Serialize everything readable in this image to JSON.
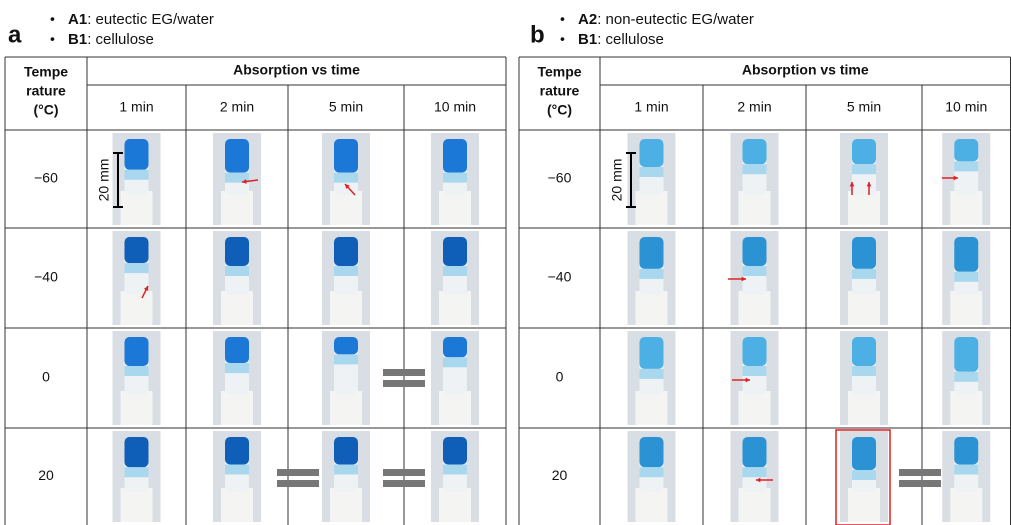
{
  "panels": [
    {
      "label": "a",
      "bullets": [
        {
          "bold": "A1",
          "text": ": eutectic EG/water"
        },
        {
          "bold": "B1",
          "text": ": cellulose"
        }
      ],
      "table": {
        "first_header": [
          "Tempe",
          "rature",
          "(°C)"
        ],
        "group_header": "Absorption vs time",
        "columns": [
          "1 min",
          "2 min",
          "5 min",
          "10 min"
        ],
        "rows": [
          "−60",
          "−40",
          "0",
          "20"
        ]
      },
      "scale_label": "20 mm"
    },
    {
      "label": "b",
      "bullets": [
        {
          "bold": "A2",
          "text": ": non-eutectic EG/water"
        },
        {
          "bold": "B1",
          "text": ": cellulose"
        }
      ],
      "table": {
        "first_header": [
          "Tempe",
          "rature",
          "(°C)"
        ],
        "group_header": "Absorption vs time",
        "columns": [
          "1 min",
          "2 min",
          "5 min",
          "10 min"
        ],
        "rows": [
          "−60",
          "−40",
          "0",
          "20"
        ]
      },
      "scale_label": "20 mm"
    }
  ]
}
